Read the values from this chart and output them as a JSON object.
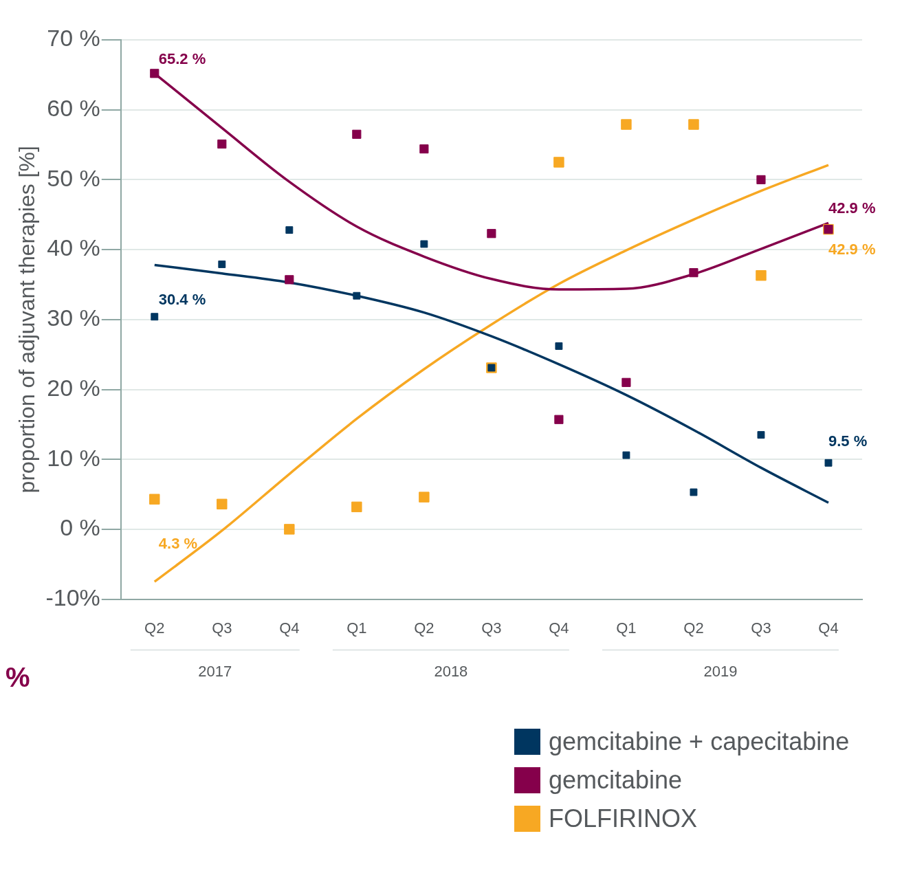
{
  "chart_data": {
    "type": "scatter",
    "ylabel": "proportion of adjuvant therapies [%]",
    "categories": [
      "Q2",
      "Q3",
      "Q4",
      "Q1",
      "Q2",
      "Q3",
      "Q4",
      "Q1",
      "Q2",
      "Q3",
      "Q4"
    ],
    "series": [
      {
        "name": "gemcitabine + capecitabine",
        "color": "#003660",
        "values": [
          30.4,
          37.9,
          42.8,
          33.4,
          40.8,
          23.1,
          26.2,
          10.6,
          5.3,
          13.5,
          9.5
        ],
        "value_labels": [
          "30.4 %",
          null,
          null,
          null,
          null,
          null,
          null,
          null,
          null,
          null,
          "9.5 %"
        ]
      },
      {
        "name": "gemcitabine",
        "color": "#85004b",
        "values": [
          65.2,
          55.1,
          35.7,
          56.5,
          54.4,
          42.3,
          15.7,
          21.0,
          36.7,
          50.0,
          42.9
        ],
        "value_labels": [
          "65.2 %",
          null,
          null,
          null,
          null,
          null,
          null,
          null,
          null,
          null,
          "42.9 %"
        ]
      },
      {
        "name": "FOLFIRINOX",
        "color": "#f7a823",
        "values": [
          4.3,
          3.6,
          0,
          3.2,
          4.6,
          23.1,
          52.5,
          57.9,
          57.9,
          36.3,
          42.9
        ],
        "value_labels": [
          "4.3 %",
          null,
          null,
          null,
          null,
          null,
          null,
          null,
          null,
          null,
          "42.9 %"
        ]
      },
      {
        "type": "line",
        "marker": "none",
        "color": "#003660",
        "values": [
          37.8,
          36.6,
          35.3,
          33.4,
          31.0,
          27.6,
          23.6,
          19.2,
          14.2,
          8.8,
          3.8
        ]
      },
      {
        "type": "line",
        "marker": "none",
        "color": "#85004b",
        "values": [
          65.2,
          57.4,
          49.7,
          43.3,
          39.0,
          35.8,
          34.3,
          34.4,
          36.5,
          40.1,
          43.8
        ]
      },
      {
        "type": "line",
        "marker": "none",
        "color": "#f7a823",
        "values": [
          -7.5,
          -0.2,
          7.9,
          15.8,
          22.9,
          29.3,
          35.1,
          39.9,
          44.3,
          48.4,
          52.1
        ]
      }
    ],
    "ylim": [
      -10,
      70
    ],
    "yticks": [
      {
        "value": -10,
        "label": "-10%"
      },
      {
        "value": 0,
        "label": "0 %"
      },
      {
        "value": 10,
        "label": "10 %"
      },
      {
        "value": 20,
        "label": "20 %"
      },
      {
        "value": 30,
        "label": "30 %"
      },
      {
        "value": 40,
        "label": "40 %"
      },
      {
        "value": 50,
        "label": "50 %"
      },
      {
        "value": 60,
        "label": "60 %"
      },
      {
        "value": 70,
        "label": "70 %"
      }
    ],
    "grid": "y",
    "marker": "square",
    "legend": "bottom right",
    "annotations": [
      "2017",
      "2018",
      "2019",
      "%"
    ]
  }
}
